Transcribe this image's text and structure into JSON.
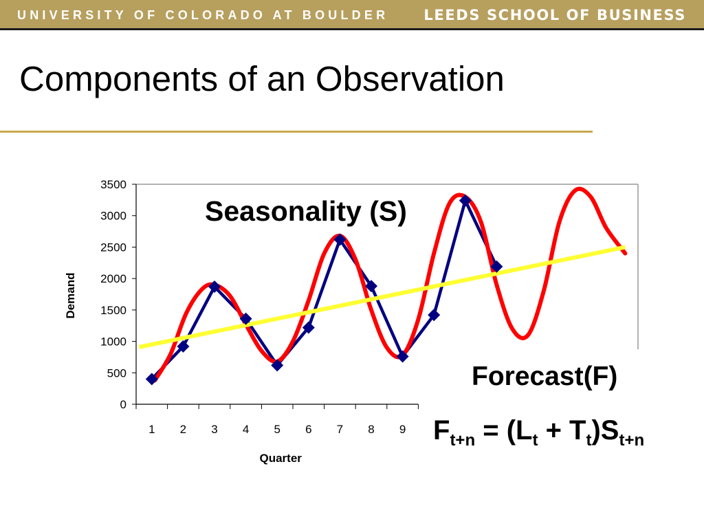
{
  "header": {
    "left_text": "UNIVERSITY OF COLORADO AT BOULDER",
    "right_text": "LEEDS SCHOOL OF BUSINESS"
  },
  "slide": {
    "title": "Components of an Observation",
    "seasonality_label": "Seasonality (S)",
    "forecast_label": "Forecast(F)",
    "formula": {
      "F": "F",
      "sub1": "t+n",
      "eq": " = (L",
      "sub2": "t",
      "plus": " + T",
      "sub3": "t",
      "close": ")S",
      "sub4": "t+n"
    }
  },
  "colors": {
    "header_gold": "#b79f5e",
    "rule_gold": "#c9a84c",
    "demand_series": "#000080",
    "seasonal_curve": "#ff0000",
    "trend_line": "#ffff33"
  },
  "chart_data": {
    "type": "line",
    "xlabel": "Quarter",
    "ylabel": "Demand",
    "categories": [
      "1",
      "2",
      "3",
      "4",
      "5",
      "6",
      "7",
      "8",
      "9"
    ],
    "yticks": [
      "0",
      "500",
      "1000",
      "1500",
      "2000",
      "2500",
      "3000",
      "3500"
    ],
    "ylim": [
      0,
      3500
    ],
    "grid": false,
    "series": [
      {
        "marker": "diamond",
        "color": "#000080",
        "x": [
          1,
          2,
          3,
          4,
          5,
          6,
          7,
          8,
          9,
          10,
          11,
          12
        ],
        "values": [
          400,
          920,
          1870,
          1360,
          620,
          1220,
          2620,
          1880,
          760,
          1420,
          3240,
          2190
        ]
      }
    ],
    "overlays": {
      "trend": {
        "color": "#ffff33",
        "x": [
          0.6,
          16.1
        ],
        "values": [
          910,
          2500
        ]
      },
      "seasonal_curve": {
        "color": "#ff0000",
        "x": [
          1.1,
          1.6,
          2.1,
          2.6,
          3.0,
          3.5,
          4.0,
          4.5,
          5.0,
          5.5,
          6.0,
          6.5,
          7.0,
          7.5,
          8.0,
          8.5,
          9.0,
          9.5,
          10.0,
          10.5,
          11.0,
          11.5,
          12.0,
          12.5,
          13.0,
          13.5,
          14.0,
          14.5,
          15.0,
          15.5,
          16.1
        ],
        "values": [
          380,
          800,
          1450,
          1830,
          1900,
          1720,
          1270,
          850,
          680,
          1000,
          1650,
          2400,
          2680,
          2300,
          1500,
          900,
          780,
          1350,
          2400,
          3200,
          3300,
          2900,
          1900,
          1200,
          1100,
          1800,
          2900,
          3400,
          3300,
          2800,
          2400
        ]
      }
    }
  }
}
